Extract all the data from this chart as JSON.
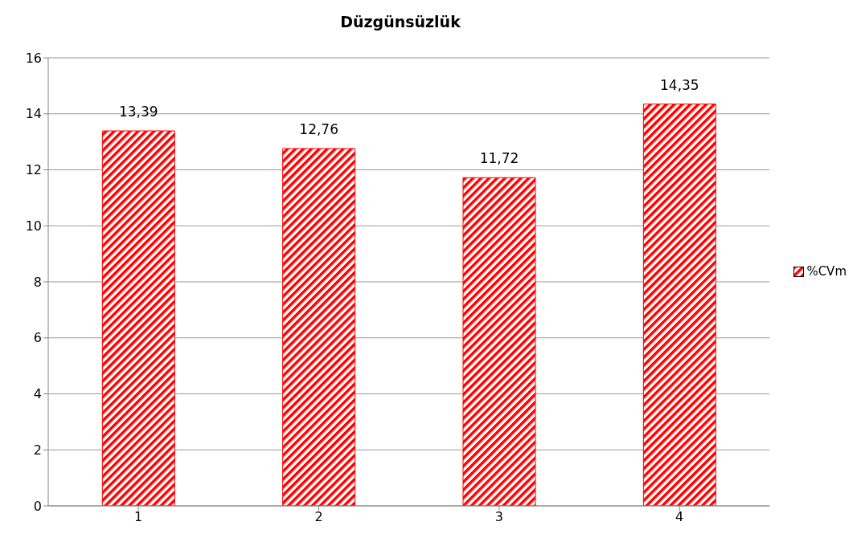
{
  "chart_data": {
    "type": "bar",
    "title": "Düzgünsüzlük",
    "categories": [
      "1",
      "2",
      "3",
      "4"
    ],
    "series": [
      {
        "name": "%CVm",
        "color": "#ff0000",
        "values": [
          13.39,
          12.76,
          11.72,
          14.35
        ],
        "value_labels": [
          "13,39",
          "12,76",
          "11,72",
          "14,35"
        ]
      }
    ],
    "ylim": [
      0,
      16
    ],
    "yticks": [
      0,
      2,
      4,
      6,
      8,
      10,
      12,
      14,
      16
    ],
    "grid": "y",
    "legend": "right"
  }
}
